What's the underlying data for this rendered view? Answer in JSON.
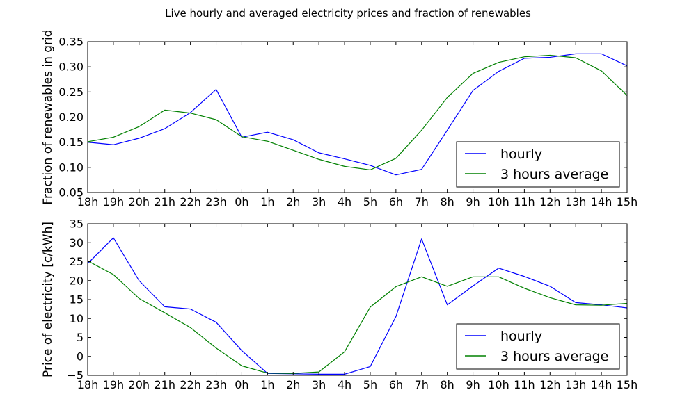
{
  "figure": {
    "title": "Live hourly and averaged electricity prices and fraction of renewables"
  },
  "colors": {
    "hourly": "#0000ff",
    "average": "#008000"
  },
  "chart_data": [
    {
      "type": "line",
      "xlabel": "",
      "ylabel": "Fraction of renewables in grid",
      "ylim": [
        0.05,
        0.35
      ],
      "yticks": [
        "0.05",
        "0.10",
        "0.15",
        "0.20",
        "0.25",
        "0.30",
        "0.35"
      ],
      "categories": [
        "18h",
        "19h",
        "20h",
        "21h",
        "22h",
        "23h",
        "0h",
        "1h",
        "2h",
        "3h",
        "4h",
        "5h",
        "6h",
        "7h",
        "8h",
        "9h",
        "10h",
        "11h",
        "12h",
        "13h",
        "14h",
        "15h"
      ],
      "series": [
        {
          "name": "hourly",
          "color": "#0000ff",
          "values": [
            0.15,
            0.145,
            0.158,
            0.177,
            0.209,
            0.255,
            0.16,
            0.17,
            0.155,
            0.129,
            0.117,
            0.104,
            0.085,
            0.096,
            0.174,
            0.253,
            0.291,
            0.317,
            0.319,
            0.326,
            0.326,
            0.302
          ]
        },
        {
          "name": "3 hours average",
          "color": "#008000",
          "values": [
            0.151,
            0.16,
            0.181,
            0.214,
            0.208,
            0.195,
            0.161,
            0.152,
            0.134,
            0.116,
            0.102,
            0.095,
            0.118,
            0.174,
            0.239,
            0.287,
            0.309,
            0.32,
            0.323,
            0.318,
            0.292,
            0.243
          ]
        }
      ],
      "legend": {
        "position": "lower-right",
        "entries": [
          "hourly",
          "3 hours average"
        ]
      },
      "grid": false
    },
    {
      "type": "line",
      "xlabel": "",
      "ylabel": "Price of electricity [c/kWh]",
      "ylim": [
        -5,
        35
      ],
      "yticks": [
        "−5",
        "0",
        "5",
        "10",
        "15",
        "20",
        "25",
        "30",
        "35"
      ],
      "categories": [
        "18h",
        "19h",
        "20h",
        "21h",
        "22h",
        "23h",
        "0h",
        "1h",
        "2h",
        "3h",
        "4h",
        "5h",
        "6h",
        "7h",
        "8h",
        "9h",
        "10h",
        "11h",
        "12h",
        "13h",
        "14h",
        "15h"
      ],
      "series": [
        {
          "name": "hourly",
          "color": "#0000ff",
          "values": [
            24.5,
            31.3,
            20.0,
            13.1,
            12.5,
            9.0,
            1.5,
            -4.5,
            -4.6,
            -4.7,
            -4.7,
            -2.7,
            10.5,
            31.0,
            13.6,
            18.6,
            23.3,
            21.1,
            18.5,
            14.2,
            13.6,
            12.8
          ]
        },
        {
          "name": "3 hours average",
          "color": "#008000",
          "values": [
            25.2,
            21.6,
            15.3,
            11.5,
            7.6,
            2.2,
            -2.5,
            -4.4,
            -4.5,
            -4.1,
            1.2,
            13.0,
            18.4,
            21.0,
            18.5,
            21.0,
            21.0,
            18.0,
            15.5,
            13.6,
            13.5,
            14.0
          ]
        }
      ],
      "legend": {
        "position": "lower-right",
        "entries": [
          "hourly",
          "3 hours average"
        ]
      },
      "grid": false
    }
  ]
}
